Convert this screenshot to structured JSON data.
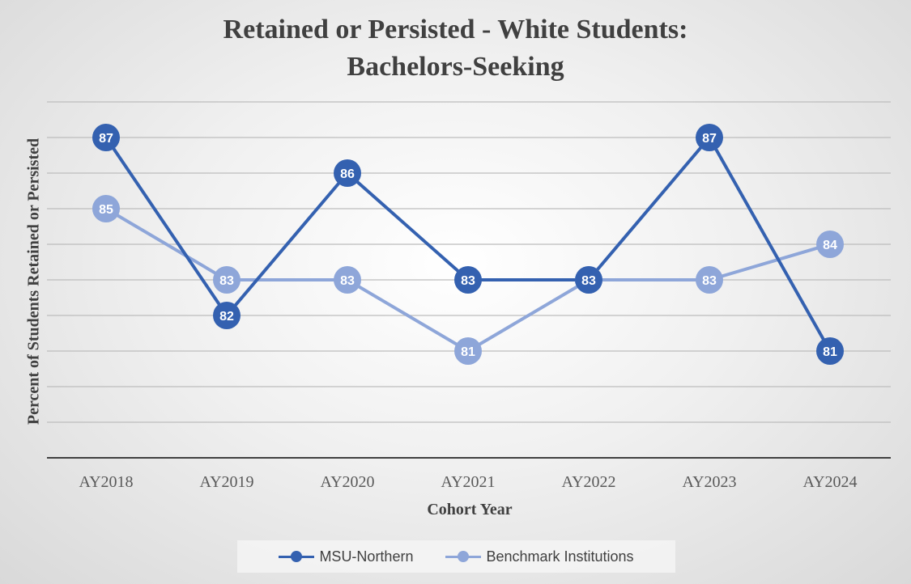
{
  "chart_data": {
    "type": "line",
    "title": [
      "Retained or Persisted - White Students:",
      "Bachelors-Seeking"
    ],
    "xlabel": "Cohort Year",
    "ylabel": "Percent of  Students Retained or Persisted",
    "categories": [
      "AY2018",
      "AY2019",
      "AY2020",
      "AY2021",
      "AY2022",
      "AY2023",
      "AY2024"
    ],
    "ylim": [
      78,
      88
    ],
    "grid": true,
    "legend": "bottom",
    "series": [
      {
        "name": "MSU-Northern",
        "color": "#3461b0",
        "values": [
          87,
          82,
          86,
          83,
          83,
          87,
          81
        ]
      },
      {
        "name": "Benchmark Institutions",
        "color": "#8ea6d9",
        "values": [
          85,
          83,
          83,
          81,
          83,
          83,
          84
        ]
      }
    ]
  }
}
